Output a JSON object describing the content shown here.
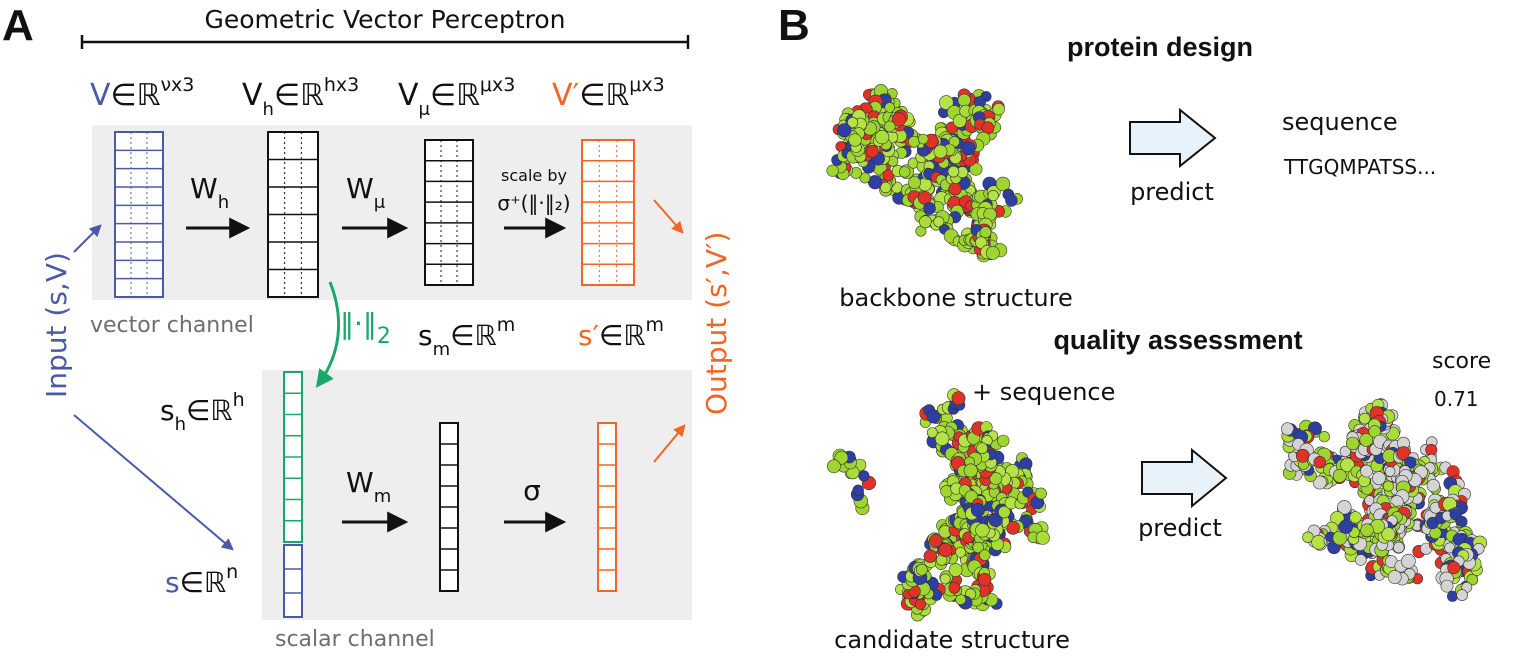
{
  "colors": {
    "blue": "#4a5aa8",
    "black": "#111111",
    "orange": "#f26522",
    "green": "#1aa86a",
    "gray_box": "#eeeeee",
    "gray_text": "#6d6e71",
    "arrow_fill": "#e8f2fb"
  },
  "panelA": {
    "letter": "A",
    "title": "Geometric Vector Perceptron",
    "input_label": "Input (s,V)",
    "output_label": "Output (s′,V′)",
    "vector_channel": "vector channel",
    "scalar_channel": "scalar channel",
    "vec_V": {
      "base": "V",
      "in": "∈ℝ",
      "sup": "νx3"
    },
    "vec_Vh": {
      "base": "V",
      "sub": "h",
      "in": "∈ℝ",
      "sup": "hx3"
    },
    "vec_Vmu": {
      "base": "V",
      "sub": "μ",
      "in": "∈ℝ",
      "sup": "μx3"
    },
    "vec_Vprime": {
      "base": "V′",
      "in": "∈ℝ",
      "sup": "μx3"
    },
    "Wh": {
      "base": "W",
      "sub": "h"
    },
    "Wmu": {
      "base": "W",
      "sub": "μ"
    },
    "Wm": {
      "base": "W",
      "sub": "m"
    },
    "scale_by": "scale by",
    "scale_fn": "σ⁺(‖·‖₂)",
    "norm": "‖·‖",
    "norm_sub": "2",
    "sm": {
      "base": "s",
      "sub": "m",
      "in": "∈ℝ",
      "sup": "m"
    },
    "sprime": {
      "base": "s′",
      "in": "∈ℝ",
      "sup": "m"
    },
    "sh": {
      "base": "s",
      "sub": "h",
      "in": "∈ℝ",
      "sup": "h"
    },
    "s": {
      "base": "s",
      "in": "∈ℝ",
      "sup": "n"
    },
    "sigma": "σ"
  },
  "panelB": {
    "letter": "B",
    "protein_design": "protein design",
    "backbone_structure": "backbone structure",
    "predict1": "predict",
    "sequence_label": "sequence",
    "sequence_value": "TTGQMPATSS...",
    "quality_assessment": "quality assessment",
    "plus_sequence": "+ sequence",
    "candidate_structure": "candidate structure",
    "predict2": "predict",
    "score_label": "score",
    "score_value": "0.71"
  }
}
